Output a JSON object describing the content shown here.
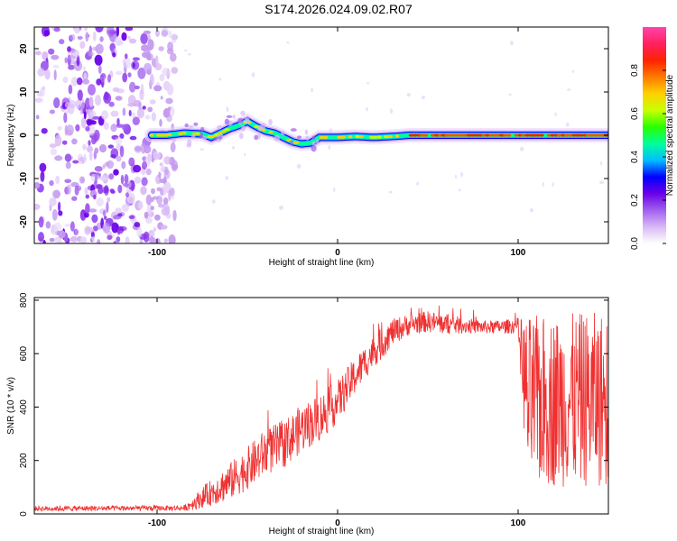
{
  "page_title": "S174.2026.024.09.02.R07",
  "chart_data": [
    {
      "type": "heatmap",
      "name": "spectrogram",
      "xlabel": "Height of straight line (km)",
      "ylabel": "Frequency (Hz)",
      "xlim": [
        -168,
        150
      ],
      "ylim": [
        -25,
        25
      ],
      "xticks": [
        -100,
        0,
        100
      ],
      "xtick_labels": [
        "-100",
        "0",
        "100"
      ],
      "yticks": [
        -20,
        -10,
        0,
        10,
        20
      ],
      "ytick_labels": [
        "-20",
        "-10",
        "0",
        "10",
        "20"
      ],
      "ridge": {
        "x": [
          -103,
          -95,
          -85,
          -75,
          -70,
          -65,
          -60,
          -55,
          -50,
          -45,
          -40,
          -35,
          -30,
          -25,
          -20,
          -15,
          -10,
          0,
          10,
          20,
          30,
          40,
          60,
          80,
          100,
          120,
          150
        ],
        "y": [
          0.0,
          0.0,
          0.5,
          0.3,
          -0.5,
          0.5,
          1.5,
          2.2,
          3.2,
          2.0,
          1.0,
          0.5,
          -0.5,
          -1.5,
          -2.0,
          -1.8,
          -0.5,
          -0.5,
          -0.3,
          -0.5,
          -0.3,
          0.0,
          0.0,
          0.0,
          0.0,
          0.0,
          0.0
        ]
      },
      "noise_region_x": [
        -168,
        -90
      ],
      "colorbar": {
        "label": "Normalized spectral amplitude",
        "range": [
          0,
          1
        ],
        "ticks": [
          0.0,
          0.2,
          0.4,
          0.6,
          0.8
        ],
        "tick_labels": [
          "0.0",
          "0.2",
          "0.4",
          "0.6",
          "0.8"
        ],
        "colors": [
          "#ffffff",
          "#d9b8f5",
          "#a060ee",
          "#6a00e8",
          "#0000ff",
          "#00bfff",
          "#00ff9a",
          "#28ff00",
          "#c8ff00",
          "#ffd000",
          "#ff7a00",
          "#ff2200",
          "#ff2060",
          "#ff44aa"
        ]
      }
    },
    {
      "type": "line",
      "name": "snr",
      "xlabel": "Height of straight line (km)",
      "ylabel": "SNR (10 * v/v)",
      "xlim": [
        -168,
        150
      ],
      "ylim": [
        0,
        810
      ],
      "xticks": [
        -100,
        0,
        100
      ],
      "xtick_labels": [
        "-100",
        "0",
        "100"
      ],
      "yticks": [
        0,
        200,
        400,
        600,
        800
      ],
      "ytick_labels": [
        "0",
        "200",
        "400",
        "600",
        "800"
      ],
      "color": "#f03030",
      "envelope": {
        "x": [
          -168,
          -85,
          -80,
          -70,
          -60,
          -50,
          -40,
          -30,
          -20,
          -10,
          0,
          10,
          20,
          25,
          30,
          40,
          50,
          60,
          70,
          80,
          90,
          100,
          105,
          150
        ],
        "mid": [
          20,
          22,
          40,
          80,
          120,
          170,
          230,
          260,
          320,
          360,
          420,
          520,
          610,
          640,
          680,
          710,
          720,
          710,
          705,
          700,
          700,
          705,
          420,
          430
        ],
        "amp": [
          10,
          10,
          25,
          50,
          70,
          80,
          90,
          90,
          90,
          90,
          80,
          70,
          60,
          60,
          50,
          40,
          40,
          40,
          30,
          25,
          25,
          30,
          320,
          330
        ]
      }
    }
  ]
}
